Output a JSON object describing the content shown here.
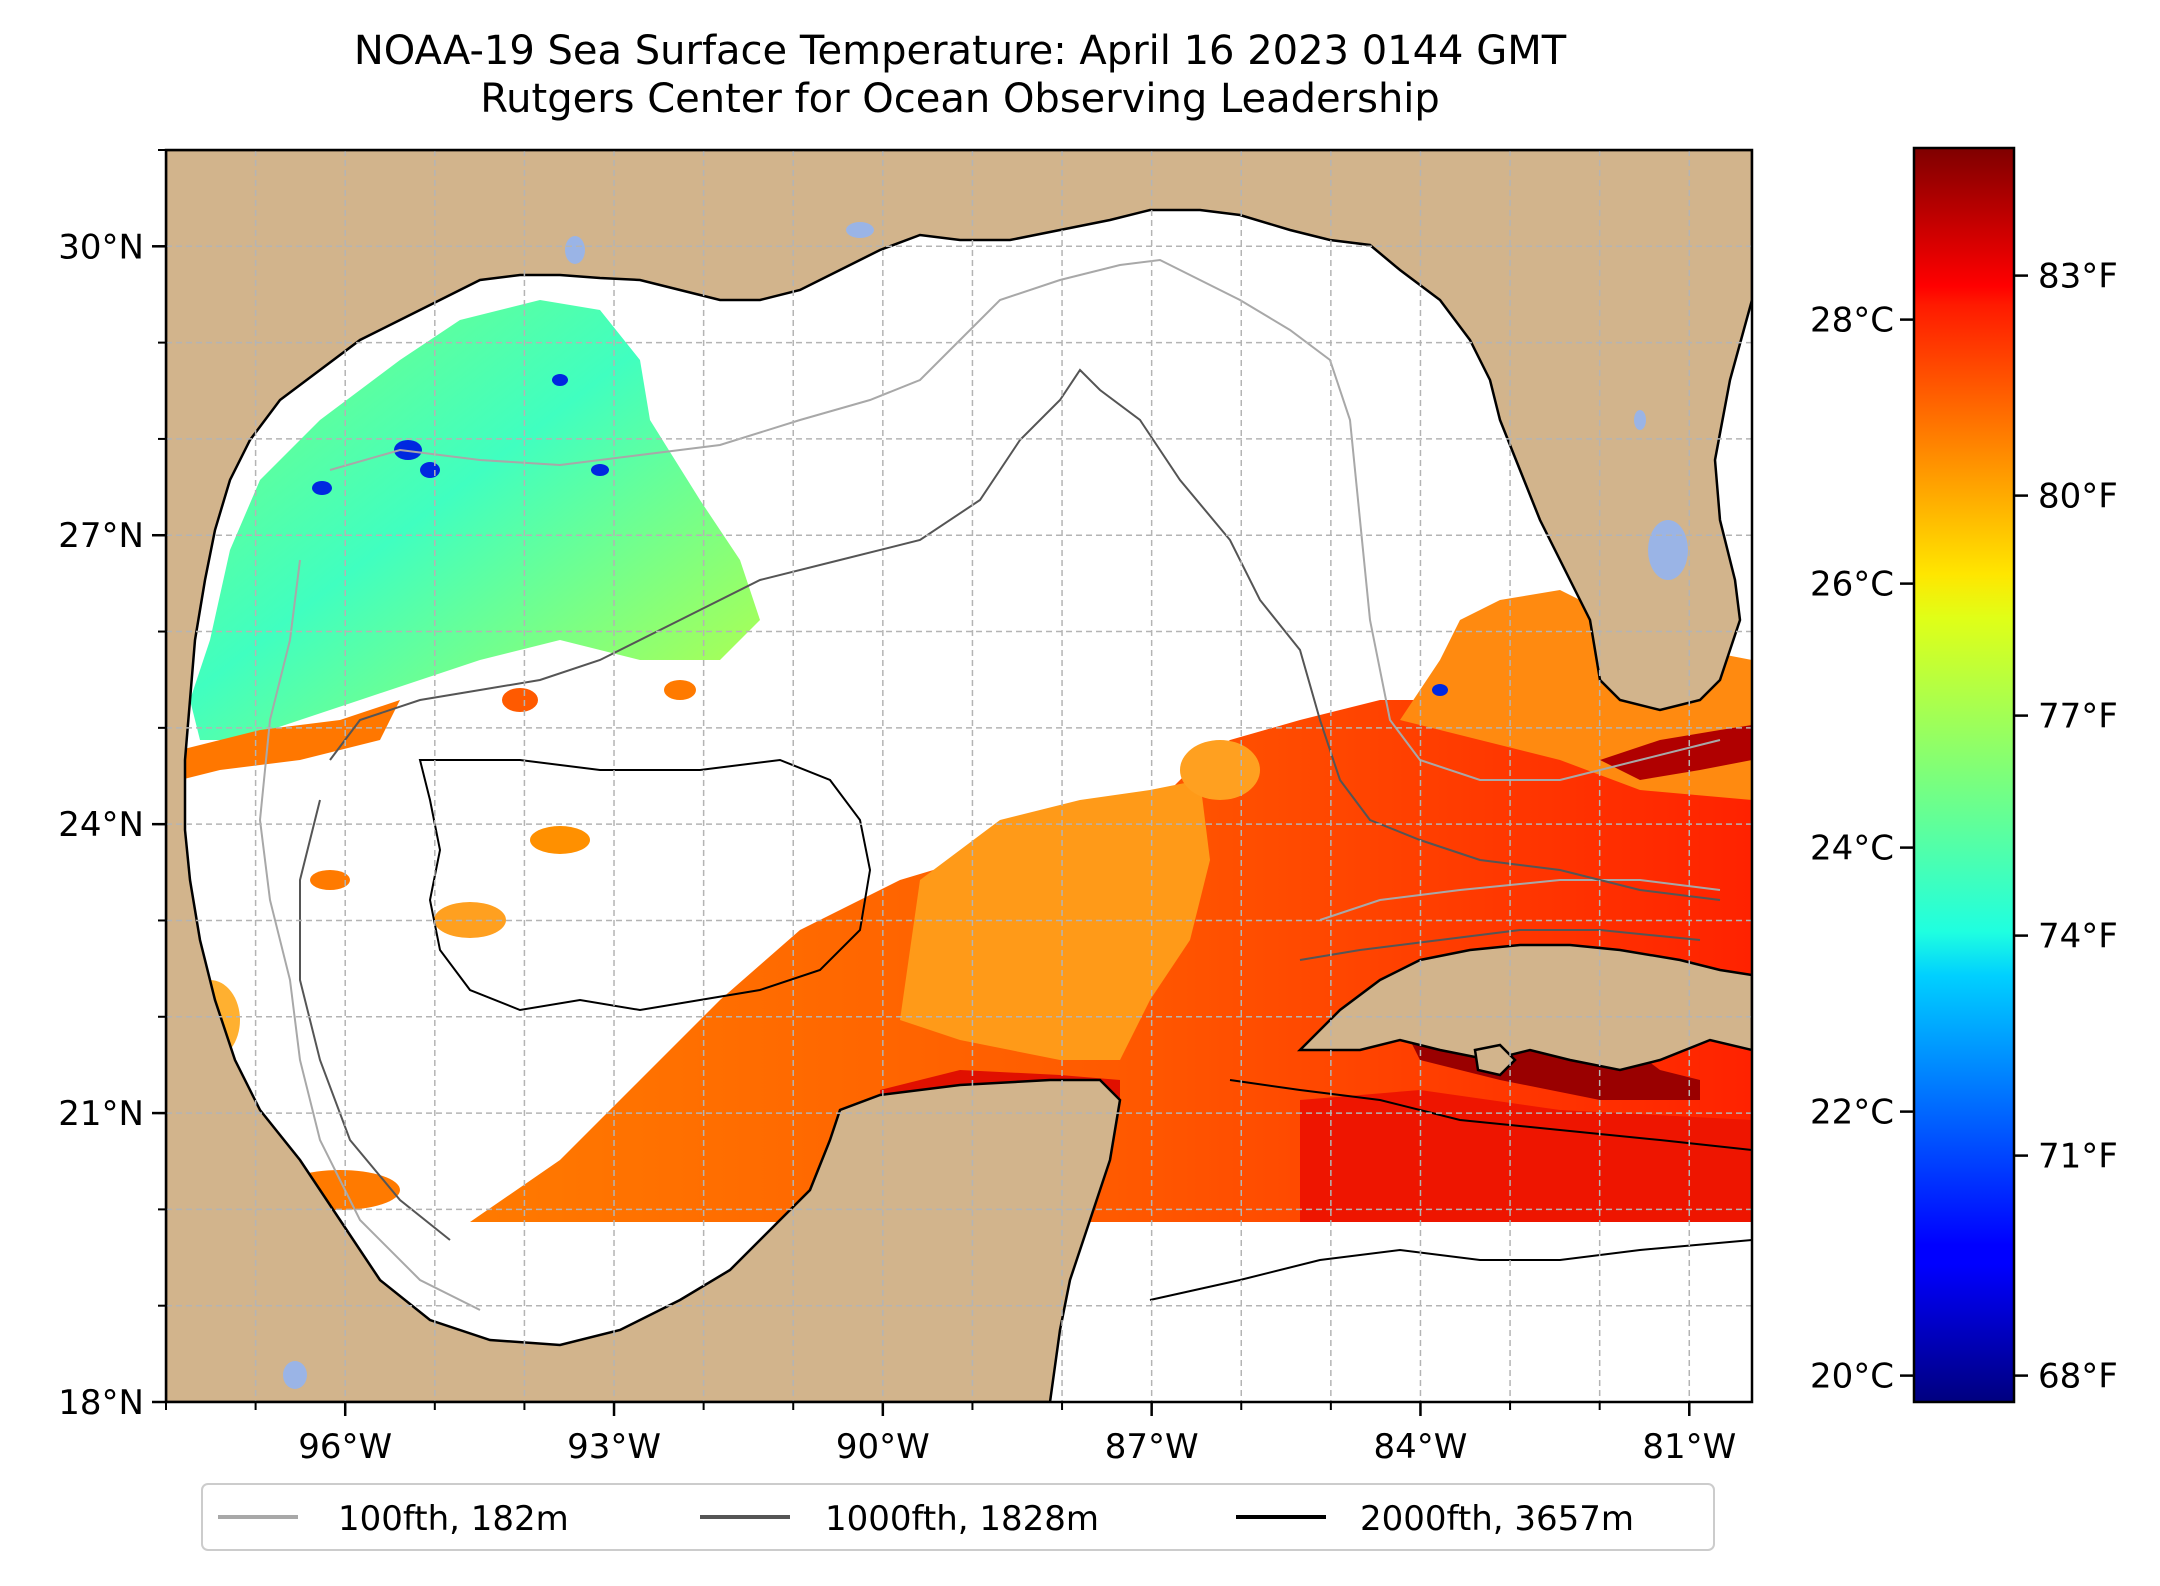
{
  "title": {
    "line1": "NOAA-19 Sea Surface Temperature: April 16 2023 0144 GMT",
    "line2": "Rutgers Center for Ocean Observing Leadership"
  },
  "map": {
    "lon_range": [
      -98,
      -80.3
    ],
    "lat_range": [
      18,
      31
    ],
    "lon_ticks": [
      {
        "value": -96,
        "label": "96°W"
      },
      {
        "value": -93,
        "label": "93°W"
      },
      {
        "value": -90,
        "label": "90°W"
      },
      {
        "value": -87,
        "label": "87°W"
      },
      {
        "value": -84,
        "label": "84°W"
      },
      {
        "value": -81,
        "label": "81°W"
      }
    ],
    "lat_ticks": [
      {
        "value": 18,
        "label": "18°N"
      },
      {
        "value": 21,
        "label": "21°N"
      },
      {
        "value": 24,
        "label": "24°N"
      },
      {
        "value": 27,
        "label": "27°N"
      },
      {
        "value": 30,
        "label": "30°N"
      }
    ],
    "grid": true,
    "colors": {
      "land": "#d2b48c",
      "lakes": "#9ab4e6",
      "no_data": "#ffffff",
      "grid": "#b4b4b4"
    }
  },
  "legend": {
    "placement": "bottom-center",
    "items": [
      {
        "label": "100fth, 182m",
        "color": "#a8a8a8"
      },
      {
        "label": "1000fth, 1828m",
        "color": "#555555"
      },
      {
        "label": "2000fth, 3657m",
        "color": "#000000"
      }
    ]
  },
  "colorbar": {
    "colormap": "jet",
    "celsius_range": [
      19.8,
      29.3
    ],
    "celsius_ticks": [
      {
        "value": 20,
        "label": "20°C"
      },
      {
        "value": 22,
        "label": "22°C"
      },
      {
        "value": 24,
        "label": "24°C"
      },
      {
        "value": 26,
        "label": "26°C"
      },
      {
        "value": 28,
        "label": "28°C"
      }
    ],
    "fahrenheit_ticks": [
      {
        "value": 68,
        "label": "68°F"
      },
      {
        "value": 71,
        "label": "71°F"
      },
      {
        "value": 74,
        "label": "74°F"
      },
      {
        "value": 77,
        "label": "77°F"
      },
      {
        "value": 80,
        "label": "80°F"
      },
      {
        "value": 83,
        "label": "83°F"
      }
    ]
  }
}
